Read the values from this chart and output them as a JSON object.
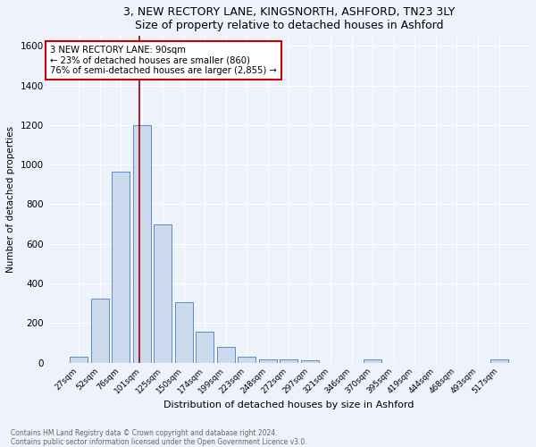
{
  "title": "3, NEW RECTORY LANE, KINGSNORTH, ASHFORD, TN23 3LY",
  "subtitle": "Size of property relative to detached houses in Ashford",
  "xlabel": "Distribution of detached houses by size in Ashford",
  "ylabel": "Number of detached properties",
  "bar_color": "#ccd9ec",
  "bar_edge_color": "#5b8cc8",
  "background_color": "#eef2fb",
  "grid_color": "#ffffff",
  "categories": [
    "27sqm",
    "52sqm",
    "76sqm",
    "101sqm",
    "125sqm",
    "150sqm",
    "174sqm",
    "199sqm",
    "223sqm",
    "248sqm",
    "272sqm",
    "297sqm",
    "321sqm",
    "346sqm",
    "370sqm",
    "395sqm",
    "419sqm",
    "444sqm",
    "468sqm",
    "493sqm",
    "517sqm"
  ],
  "values": [
    28,
    325,
    965,
    1200,
    700,
    305,
    155,
    78,
    28,
    18,
    15,
    12,
    0,
    0,
    15,
    0,
    0,
    0,
    0,
    0,
    15
  ],
  "ylim": [
    0,
    1650
  ],
  "yticks": [
    0,
    200,
    400,
    600,
    800,
    1000,
    1200,
    1400,
    1600
  ],
  "vline_pos": 2.9,
  "vline_color": "#990000",
  "property_line_label": "3 NEW RECTORY LANE: 90sqm",
  "annotation_line1": "← 23% of detached houses are smaller (860)",
  "annotation_line2": "76% of semi-detached houses are larger (2,855) →",
  "annotation_box_color": "#ffffff",
  "annotation_box_edge": "#cc0000",
  "footer_line1": "Contains HM Land Registry data © Crown copyright and database right 2024.",
  "footer_line2": "Contains public sector information licensed under the Open Government Licence v3.0."
}
